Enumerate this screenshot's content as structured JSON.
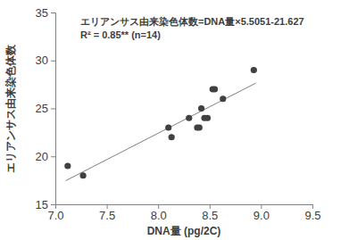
{
  "chart_data": {
    "type": "scatter",
    "x_label": "DNA量 (pg/2C)",
    "y_label": "エリアンサス由来染色体数",
    "annotations": [
      "エリアンサス由来染色体数=DNA量×5.5051-21.627",
      "R² = 0.85** (n=14)"
    ],
    "x": [
      7.12,
      7.27,
      8.1,
      8.13,
      8.3,
      8.38,
      8.4,
      8.42,
      8.45,
      8.48,
      8.53,
      8.55,
      8.63,
      8.93
    ],
    "values": [
      19,
      18,
      23,
      22,
      24,
      23,
      23,
      25,
      24,
      24,
      27,
      27,
      26,
      29
    ],
    "color": "#404040",
    "marker": "circle",
    "trendline": {
      "x": [
        7.1,
        8.95
      ],
      "values": [
        17.46,
        27.64
      ],
      "color": "#808080",
      "line_style": "solid"
    },
    "xlim": [
      7.0,
      9.5
    ],
    "xticks": [
      {
        "value": 7,
        "label": "7.0"
      },
      {
        "value": 7.5,
        "label": "7.5"
      },
      {
        "value": 8,
        "label": "8.0"
      },
      {
        "value": 8.5,
        "label": "8.5"
      },
      {
        "value": 9,
        "label": "9.0"
      },
      {
        "value": 9.5,
        "label": "9.5"
      }
    ],
    "ylim": [
      15,
      35
    ],
    "yticks": [
      15,
      20,
      25,
      30,
      35
    ],
    "grid": false
  }
}
